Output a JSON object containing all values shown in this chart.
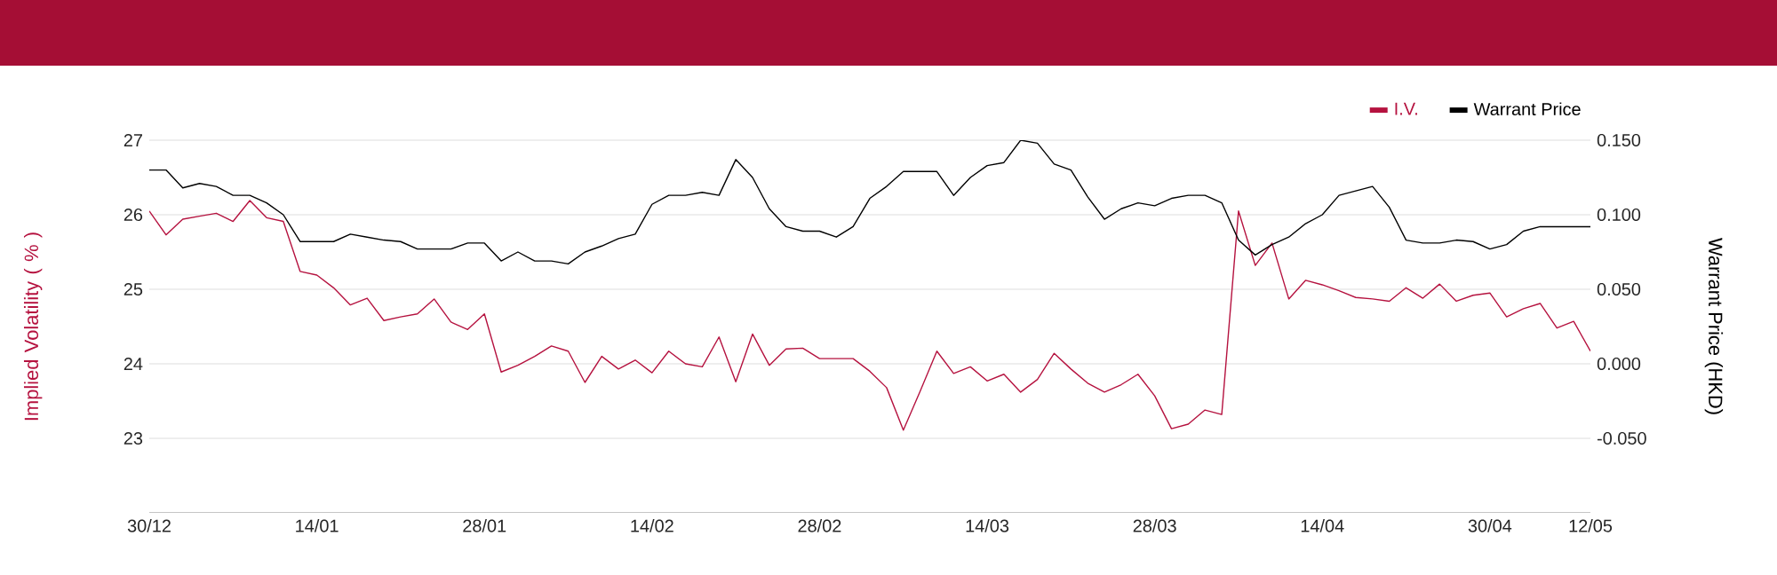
{
  "chart_data": {
    "type": "line",
    "categories": [
      "30/12",
      null,
      null,
      null,
      null,
      null,
      null,
      null,
      null,
      null,
      "14/01",
      null,
      null,
      null,
      null,
      null,
      null,
      null,
      null,
      null,
      "28/01",
      null,
      null,
      null,
      null,
      null,
      null,
      null,
      null,
      null,
      "14/02",
      null,
      null,
      null,
      null,
      null,
      null,
      null,
      null,
      null,
      "28/02",
      null,
      null,
      null,
      null,
      null,
      null,
      null,
      null,
      null,
      "14/03",
      null,
      null,
      null,
      null,
      null,
      null,
      null,
      null,
      null,
      "28/03",
      null,
      null,
      null,
      null,
      null,
      null,
      null,
      null,
      null,
      "14/04",
      null,
      null,
      null,
      null,
      null,
      null,
      null,
      null,
      null,
      "30/04",
      null,
      null,
      null,
      null,
      null,
      "12/05"
    ],
    "series": [
      {
        "name": "I.V.",
        "color": "#b5123f",
        "values": [
          26.05,
          25.73,
          25.94,
          25.98,
          26.02,
          25.91,
          26.19,
          25.96,
          25.91,
          25.24,
          25.19,
          25.02,
          24.79,
          24.88,
          24.58,
          24.63,
          24.67,
          24.87,
          24.56,
          24.46,
          24.67,
          23.89,
          23.98,
          24.1,
          24.24,
          24.17,
          23.75,
          24.1,
          23.93,
          24.05,
          23.88,
          24.17,
          24.0,
          23.96,
          24.36,
          23.76,
          24.4,
          23.98,
          24.2,
          24.21,
          24.07,
          24.07,
          24.07,
          23.9,
          23.68,
          23.11,
          23.63,
          24.17,
          23.87,
          23.96,
          23.77,
          23.86,
          23.62,
          23.79,
          24.14,
          23.93,
          23.74,
          23.62,
          23.72,
          23.86,
          23.57,
          23.13,
          23.19,
          23.38,
          23.32,
          26.05,
          25.32,
          25.62,
          24.87,
          25.12,
          25.06,
          24.98,
          24.89,
          24.87,
          24.84,
          25.02,
          24.88,
          25.07,
          24.84,
          24.92,
          24.95,
          24.63,
          24.74,
          24.81,
          24.48,
          24.57,
          24.17
        ]
      },
      {
        "name": "Warrant Price",
        "color": "#000000",
        "axis": "y2",
        "values": [
          0.13,
          0.13,
          0.118,
          0.121,
          0.119,
          0.113,
          0.113,
          0.108,
          0.1,
          0.082,
          0.082,
          0.082,
          0.087,
          0.085,
          0.083,
          0.082,
          0.077,
          0.077,
          0.077,
          0.081,
          0.081,
          0.069,
          0.075,
          0.069,
          0.069,
          0.067,
          0.075,
          0.079,
          0.084,
          0.087,
          0.107,
          0.113,
          0.113,
          0.115,
          0.113,
          0.137,
          0.125,
          0.104,
          0.092,
          0.089,
          0.089,
          0.085,
          0.092,
          0.111,
          0.119,
          0.129,
          0.129,
          0.129,
          0.113,
          0.125,
          0.133,
          0.135,
          0.15,
          0.148,
          0.134,
          0.13,
          0.112,
          0.097,
          0.104,
          0.108,
          0.106,
          0.111,
          0.113,
          0.113,
          0.108,
          0.083,
          0.073,
          0.08,
          0.085,
          0.094,
          0.1,
          0.113,
          0.116,
          0.119,
          0.105,
          0.083,
          0.081,
          0.081,
          0.083,
          0.082,
          0.077,
          0.08,
          0.089,
          0.092,
          0.092,
          0.092,
          0.092
        ]
      }
    ],
    "ylabel": "Implied Volatility ( % )",
    "y2label": "Warrant Price (HKD)",
    "ylim": [
      22,
      27
    ],
    "yticks": [
      23,
      24,
      25,
      26,
      27
    ],
    "y2lim": [
      -0.1,
      0.15
    ],
    "y2ticks": [
      {
        "value": -0.05,
        "label": "-0.050"
      },
      {
        "value": 0,
        "label": "0.000"
      },
      {
        "value": 0.05,
        "label": "0.050"
      },
      {
        "value": 0.1,
        "label": "0.100"
      },
      {
        "value": 0.15,
        "label": "0.150"
      }
    ],
    "grid": "y",
    "legend": "top right"
  }
}
